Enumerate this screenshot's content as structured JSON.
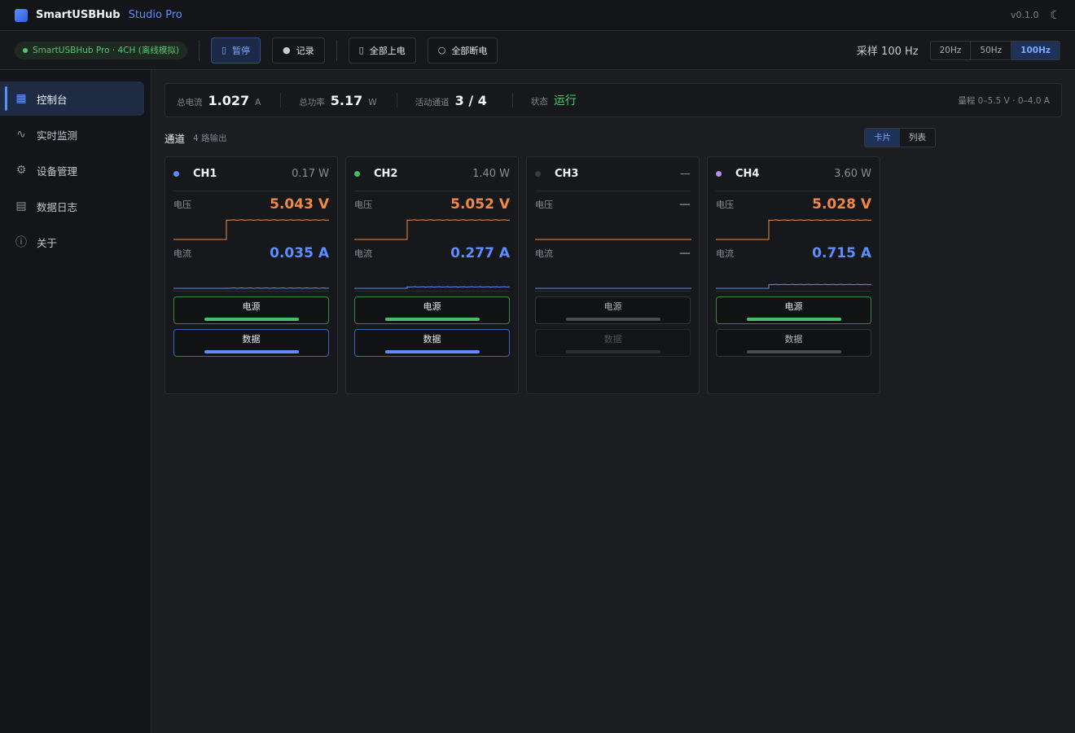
{
  "app": {
    "name": "SmartUSBHub",
    "edition": "Studio Pro",
    "version": "v0.1.0",
    "theme_icon": "moon-icon"
  },
  "toolbar": {
    "device": "SmartUSBHub Pro · 4CH (离线模拟)",
    "pause_label": "暂停",
    "record_label": "记录",
    "power_all_on_label": "全部上电",
    "power_all_off_label": "全部断电",
    "sample_label": "采样 100 Hz",
    "rates": [
      "20Hz",
      "50Hz",
      "100Hz"
    ],
    "selected_rate": "100Hz"
  },
  "sidebar": {
    "items": [
      {
        "label": "控制台",
        "icon": "grid-icon",
        "active": true
      },
      {
        "label": "实时监测",
        "icon": "wave-icon",
        "active": false
      },
      {
        "label": "设备管理",
        "icon": "gear-icon",
        "active": false
      },
      {
        "label": "数据日志",
        "icon": "log-icon",
        "active": false
      },
      {
        "label": "关于",
        "icon": "info-icon",
        "active": false
      }
    ]
  },
  "summary": {
    "total_current_label": "总电流",
    "total_current": "1.027",
    "total_current_unit": "A",
    "total_power_label": "总功率",
    "total_power": "5.17",
    "total_power_unit": "W",
    "active_label": "活动通道",
    "active": "3 / 4",
    "status_label": "状态",
    "status": "运行",
    "range": "量程 0–5.5 V · 0–4.0 A"
  },
  "channels_header": {
    "title": "通道",
    "subtitle": "4 路输出",
    "view_card": "卡片",
    "view_list": "列表",
    "selected_view": "卡片"
  },
  "labels": {
    "voltage": "电压",
    "current": "电流",
    "power_btn": "电源",
    "data_btn": "数据"
  },
  "channels": [
    {
      "name": "CH1",
      "dot_color": "#5b8dff",
      "power": "0.17 W",
      "voltage": "5.043 V",
      "current": "0.035 A",
      "power_on": true,
      "data_on": true,
      "data_enabled": true,
      "v_level": 0.917,
      "i_level": 0.0088
    },
    {
      "name": "CH2",
      "dot_color": "#43c062",
      "power": "1.40 W",
      "voltage": "5.052 V",
      "current": "0.277 A",
      "power_on": true,
      "data_on": true,
      "data_enabled": true,
      "v_level": 0.918,
      "i_level": 0.069
    },
    {
      "name": "CH3",
      "dot_color": "#3a3c42",
      "power": "—",
      "voltage": "—",
      "current": "—",
      "power_on": false,
      "data_on": false,
      "data_enabled": false,
      "v_level": 0,
      "i_level": 0
    },
    {
      "name": "CH4",
      "dot_color": "#b68cf0",
      "power": "3.60 W",
      "voltage": "5.028 V",
      "current": "0.715 A",
      "power_on": true,
      "data_on": false,
      "data_enabled": true,
      "v_level": 0.914,
      "i_level": 0.179
    }
  ],
  "colors": {
    "voltage": "#ee8a45",
    "current": "#5b8dff",
    "power_on": "#43c062",
    "data_on": "#5b8dff",
    "status_ok": "#4ec86b"
  }
}
